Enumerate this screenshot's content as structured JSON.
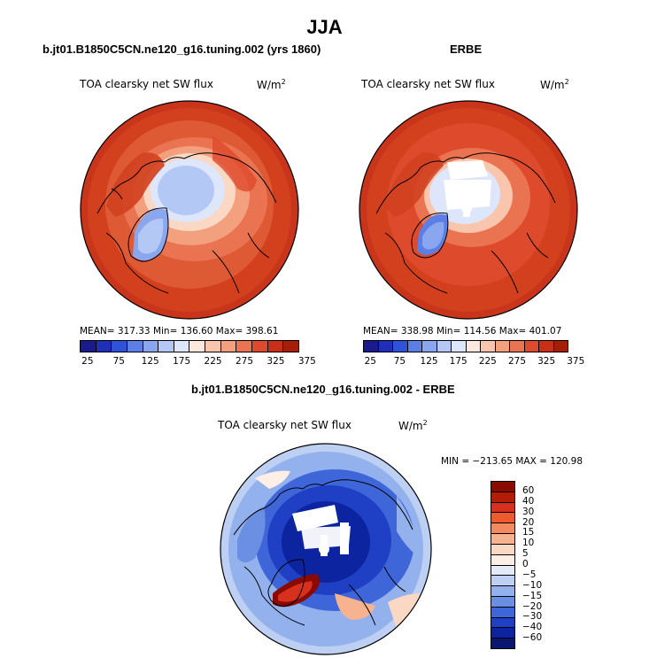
{
  "page_title": "JJA",
  "panels": {
    "model": {
      "heading": "b.jt01.B1850C5CN.ne120_g16.tuning.002 (yrs 1860)",
      "var_label": "TOA clearsky net SW flux",
      "units": "W/m",
      "units_sup": "2",
      "stats": "MEAN= 317.33  Min= 136.60  Max= 398.61"
    },
    "obs": {
      "heading": "ERBE",
      "var_label": "TOA clearsky net SW flux",
      "units": "W/m",
      "units_sup": "2",
      "stats": "MEAN= 338.98  Min= 114.56  Max= 401.07"
    },
    "diff": {
      "heading": "b.jt01.B1850C5CN.ne120_g16.tuning.002 - ERBE",
      "var_label": "TOA clearsky net SW flux",
      "units": "W/m",
      "units_sup": "2",
      "stats": "MIN = −213.65 MAX = 120.98"
    }
  },
  "colors": {
    "levels_fill": [
      "#1a1a8c",
      "#1f2fb8",
      "#2e52d8",
      "#5c7fe6",
      "#8aa6ef",
      "#b4c8f5",
      "#dde6fb",
      "#fde8de",
      "#f9c6ad",
      "#f3a07f",
      "#ea7452",
      "#de4a2c",
      "#c92f16",
      "#a61d08"
    ],
    "diff_fill": [
      "#8a0a00",
      "#b51c08",
      "#d7301f",
      "#ee5a2e",
      "#f38a5f",
      "#f7b390",
      "#fbd8c4",
      "#fdeee6",
      "#e3ebf9",
      "#bdd0f3",
      "#93b1ec",
      "#6b8fe3",
      "#3f66d9",
      "#1f40c4",
      "#0d24a1",
      "#0b1670"
    ]
  },
  "chart_data": [
    {
      "type": "heatmap",
      "title": "TOA clearsky net SW flux",
      "subtitle": "b.jt01.B1850C5CN.ne120_g16.tuning.002 (yrs 1860)",
      "units": "W/m2",
      "projection": "north polar stereographic",
      "mean": 317.33,
      "min": 136.6,
      "max": 398.61,
      "colorbar_ticks": [
        25,
        75,
        125,
        175,
        225,
        275,
        325,
        375
      ]
    },
    {
      "type": "heatmap",
      "title": "TOA clearsky net SW flux",
      "subtitle": "ERBE",
      "units": "W/m2",
      "projection": "north polar stereographic",
      "mean": 338.98,
      "min": 114.56,
      "max": 401.07,
      "colorbar_ticks": [
        25,
        75,
        125,
        175,
        225,
        275,
        325,
        375
      ]
    },
    {
      "type": "heatmap",
      "title": "TOA clearsky net SW flux",
      "subtitle": "b.jt01.B1850C5CN.ne120_g16.tuning.002 - ERBE",
      "units": "W/m2",
      "projection": "north polar stereographic",
      "min": -213.65,
      "max": 120.98,
      "colorbar_ticks": [
        "60",
        "40",
        "30",
        "20",
        "15",
        "10",
        "5",
        "0",
        "−5",
        "−10",
        "−15",
        "−20",
        "−30",
        "−40",
        "−60"
      ]
    }
  ]
}
